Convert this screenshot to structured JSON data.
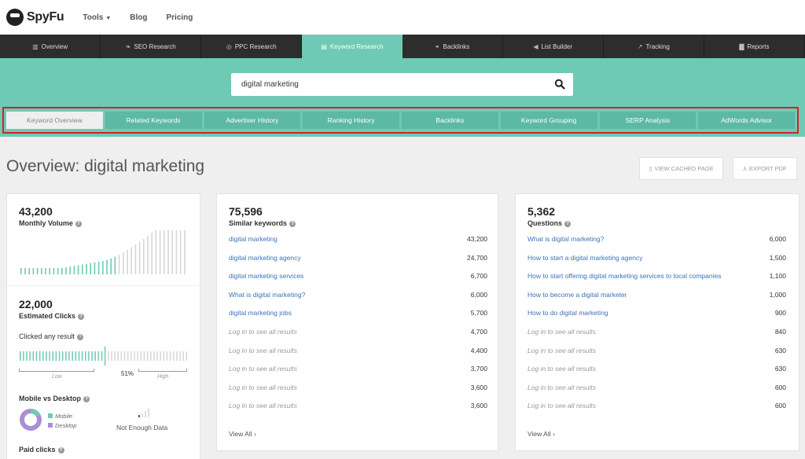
{
  "brand": {
    "name": "SpyFu"
  },
  "topnav": {
    "tools": "Tools",
    "blog": "Blog",
    "pricing": "Pricing"
  },
  "mainnav": [
    {
      "label": "Overview",
      "icon": "bar-chart-icon"
    },
    {
      "label": "SEO Research",
      "icon": "leaf-icon"
    },
    {
      "label": "PPC Research",
      "icon": "target-icon"
    },
    {
      "label": "Keyword Research",
      "icon": "keyboard-icon"
    },
    {
      "label": "Backlinks",
      "icon": "link-icon"
    },
    {
      "label": "List Builder",
      "icon": "megaphone-icon"
    },
    {
      "label": "Tracking",
      "icon": "trend-icon"
    },
    {
      "label": "Reports",
      "icon": "document-icon"
    }
  ],
  "search": {
    "value": "digital marketing"
  },
  "subtabs": [
    "Keyword Overview",
    "Related Keywords",
    "Advertiser History",
    "Ranking History",
    "Backlinks",
    "Keyword Grouping",
    "SERP Analysis",
    "AdWords Advisor"
  ],
  "overview": {
    "title": "Overview: digital marketing",
    "cached_label": "VIEW CACHED PAGE",
    "pdf_label": "EXPORT PDF"
  },
  "volume_card": {
    "volume": "43,200",
    "volume_label": "Monthly Volume",
    "clicks": "22,000",
    "clicks_label": "Estimated Clicks",
    "clicked_any": "Clicked any result",
    "clicked_pct": "51%",
    "low": "Low",
    "high": "High",
    "mobile_desktop_label": "Mobile vs Desktop",
    "mobile": "Mobile",
    "desktop": "Desktop",
    "not_enough": "Not Enough Data",
    "paid_clicks": "Paid clicks"
  },
  "similar": {
    "count": "75,596",
    "label": "Similar keywords",
    "rows": [
      {
        "term": "digital marketing",
        "value": "43,200",
        "locked": false
      },
      {
        "term": "digital marketing agency",
        "value": "24,700",
        "locked": false
      },
      {
        "term": "digital marketing services",
        "value": "6,700",
        "locked": false
      },
      {
        "term": "What is digital marketing?",
        "value": "6,000",
        "locked": false
      },
      {
        "term": "digital marketing jobs",
        "value": "5,700",
        "locked": false
      },
      {
        "term": "Log in to see all results",
        "value": "4,700",
        "locked": true
      },
      {
        "term": "Log in to see all results",
        "value": "4,400",
        "locked": true
      },
      {
        "term": "Log in to see all results",
        "value": "3,700",
        "locked": true
      },
      {
        "term": "Log in to see all results",
        "value": "3,600",
        "locked": true
      },
      {
        "term": "Log in to see all results",
        "value": "3,600",
        "locked": true
      }
    ],
    "view_all": "View All"
  },
  "questions": {
    "count": "5,362",
    "label": "Questions",
    "rows": [
      {
        "term": "What is digital marketing?",
        "value": "6,000",
        "locked": false
      },
      {
        "term": "How to start a digital marketing agency",
        "value": "1,500",
        "locked": false
      },
      {
        "term": "How to start offering digital marketing services to local companies",
        "value": "1,100",
        "locked": false
      },
      {
        "term": "How to become a digital marketer",
        "value": "1,000",
        "locked": false
      },
      {
        "term": "How to do digital marketing",
        "value": "900",
        "locked": false
      },
      {
        "term": "Log in to see all results",
        "value": "840",
        "locked": true
      },
      {
        "term": "Log in to see all results",
        "value": "630",
        "locked": true
      },
      {
        "term": "Log in to see all results",
        "value": "630",
        "locked": true
      },
      {
        "term": "Log in to see all results",
        "value": "600",
        "locked": true
      },
      {
        "term": "Log in to see all results",
        "value": "600",
        "locked": true
      }
    ],
    "view_all": "View All"
  },
  "colors": {
    "teal": "#6ecab4",
    "dark_nav": "#2d2d2d",
    "link": "#3b73b9",
    "highlight_border": "#d42026",
    "desktop_purple": "#a98fd6"
  }
}
